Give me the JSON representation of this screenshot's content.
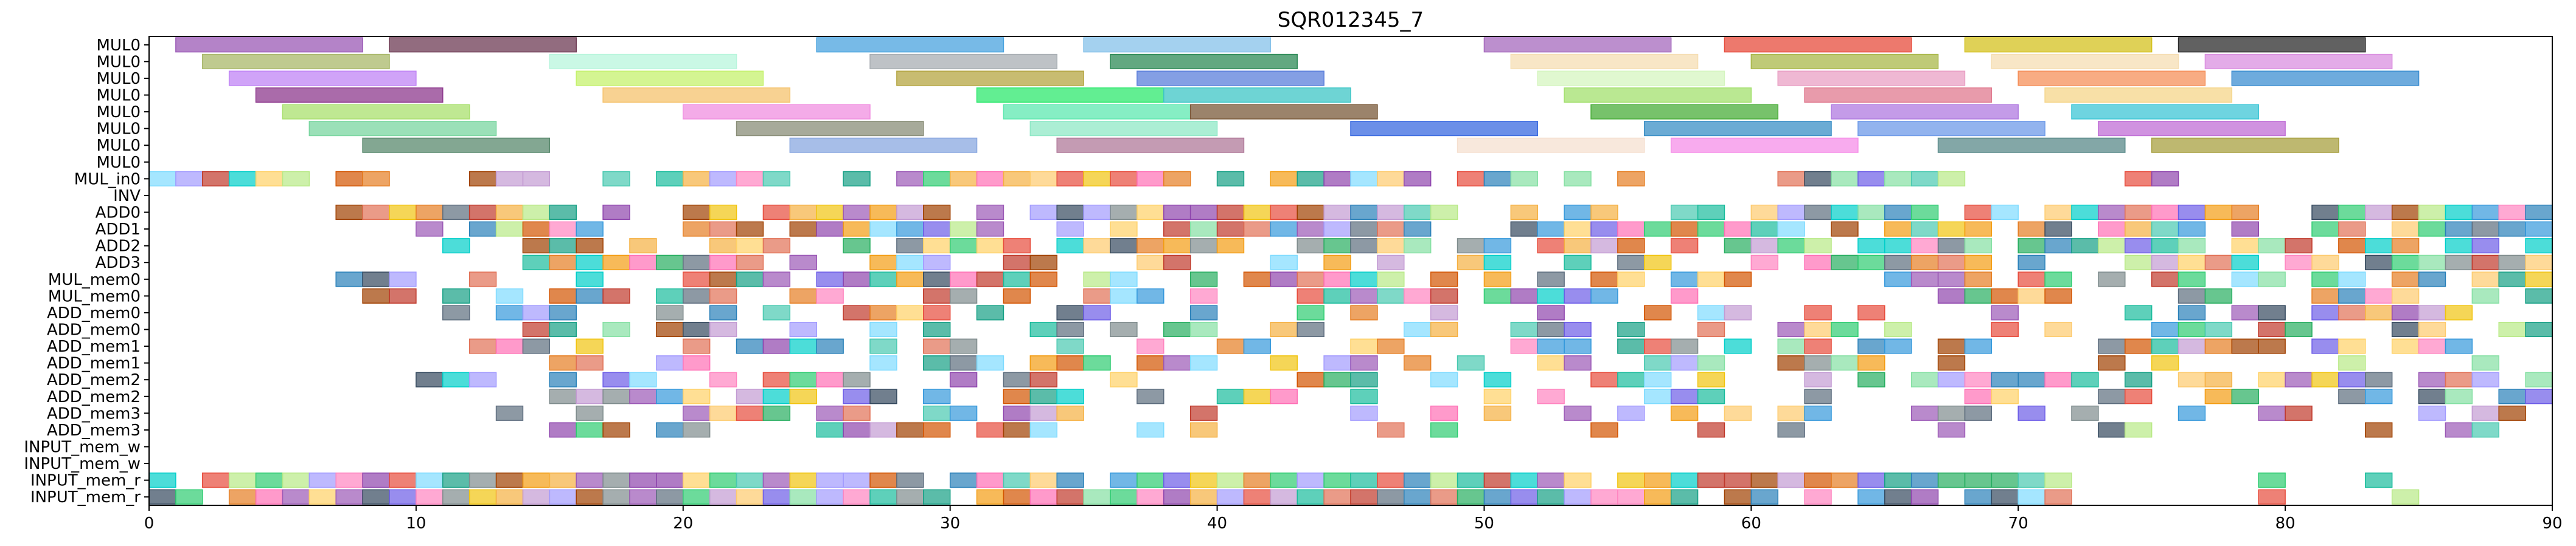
{
  "chart_data": {
    "type": "gantt",
    "title": "SQR012345_7",
    "xlim": [
      0,
      90
    ],
    "xticks": [
      0,
      10,
      20,
      30,
      40,
      50,
      60,
      70,
      80,
      90
    ],
    "xlabel": "",
    "ylabel": "",
    "rows": [
      "MUL0",
      "MUL0",
      "MUL0",
      "MUL0",
      "MUL0",
      "MUL0",
      "MUL0",
      "MUL0",
      "MUL_in0",
      "INV",
      "ADD0",
      "ADD1",
      "ADD2",
      "ADD3",
      "MUL_mem0",
      "MUL_mem0",
      "ADD_mem0",
      "ADD_mem0",
      "ADD_mem1",
      "ADD_mem1",
      "ADD_mem2",
      "ADD_mem2",
      "ADD_mem3",
      "ADD_mem3",
      "INPUT_mem_w",
      "INPUT_mem_w",
      "INPUT_mem_r",
      "INPUT_mem_r"
    ],
    "long_tasks": [
      {
        "row": 0,
        "start": 1,
        "end": 8,
        "color": "#9b59b6"
      },
      {
        "row": 0,
        "start": 9,
        "end": 16,
        "color": "#6e3b54"
      },
      {
        "row": 0,
        "start": 25,
        "end": 32,
        "color": "#4aa3df"
      },
      {
        "row": 0,
        "start": 35,
        "end": 42,
        "color": "#85c1e9"
      },
      {
        "row": 0,
        "start": 50,
        "end": 57,
        "color": "#a569bd"
      },
      {
        "row": 0,
        "start": 59,
        "end": 66,
        "color": "#e74c3c"
      },
      {
        "row": 0,
        "start": 68,
        "end": 75,
        "color": "#d4c11f"
      },
      {
        "row": 0,
        "start": 76,
        "end": 83,
        "color": "#2c2c2c"
      },
      {
        "row": 1,
        "start": 2,
        "end": 9,
        "color": "#a9b86a"
      },
      {
        "row": 1,
        "start": 15,
        "end": 22,
        "color": "#b8f5dc"
      },
      {
        "row": 1,
        "start": 27,
        "end": 34,
        "color": "#a8aeb3"
      },
      {
        "row": 1,
        "start": 36,
        "end": 43,
        "color": "#2e8b57"
      },
      {
        "row": 1,
        "start": 51,
        "end": 58,
        "color": "#f5deb3"
      },
      {
        "row": 1,
        "start": 60,
        "end": 67,
        "color": "#a9b84a"
      },
      {
        "row": 1,
        "start": 69,
        "end": 76,
        "color": "#f5deb3"
      },
      {
        "row": 1,
        "start": 77,
        "end": 84,
        "color": "#da8fe0"
      },
      {
        "row": 2,
        "start": 3,
        "end": 10,
        "color": "#c084f5"
      },
      {
        "row": 2,
        "start": 16,
        "end": 23,
        "color": "#c5f26e"
      },
      {
        "row": 2,
        "start": 28,
        "end": 35,
        "color": "#b5a642"
      },
      {
        "row": 2,
        "start": 37,
        "end": 44,
        "color": "#5b7fdb"
      },
      {
        "row": 2,
        "start": 52,
        "end": 59,
        "color": "#d5f5c0"
      },
      {
        "row": 2,
        "start": 61,
        "end": 68,
        "color": "#e9a0c4"
      },
      {
        "row": 2,
        "start": 70,
        "end": 77,
        "color": "#f5905a"
      },
      {
        "row": 2,
        "start": 78,
        "end": 85,
        "color": "#3d8fd1"
      },
      {
        "row": 3,
        "start": 4,
        "end": 11,
        "color": "#8e3a8e"
      },
      {
        "row": 3,
        "start": 17,
        "end": 24,
        "color": "#f5c36e"
      },
      {
        "row": 3,
        "start": 31,
        "end": 38,
        "color": "#2ee86e"
      },
      {
        "row": 3,
        "start": 38,
        "end": 45,
        "color": "#3ec6c6"
      },
      {
        "row": 3,
        "start": 53,
        "end": 60,
        "color": "#a3e06e"
      },
      {
        "row": 3,
        "start": 62,
        "end": 69,
        "color": "#e07a8f"
      },
      {
        "row": 3,
        "start": 71,
        "end": 78,
        "color": "#f5d58a"
      },
      {
        "row": 4,
        "start": 5,
        "end": 12,
        "color": "#a9e06e"
      },
      {
        "row": 4,
        "start": 20,
        "end": 27,
        "color": "#f08fe0"
      },
      {
        "row": 4,
        "start": 32,
        "end": 39,
        "color": "#5ee8b0"
      },
      {
        "row": 4,
        "start": 39,
        "end": 46,
        "color": "#7a5a3a"
      },
      {
        "row": 4,
        "start": 54,
        "end": 61,
        "color": "#4aad3a"
      },
      {
        "row": 4,
        "start": 63,
        "end": 70,
        "color": "#b07ae0"
      },
      {
        "row": 4,
        "start": 72,
        "end": 79,
        "color": "#3ec6d6"
      },
      {
        "row": 5,
        "start": 6,
        "end": 13,
        "color": "#7ad6a0"
      },
      {
        "row": 5,
        "start": 22,
        "end": 29,
        "color": "#8a8e78"
      },
      {
        "row": 5,
        "start": 33,
        "end": 40,
        "color": "#8fe8c6"
      },
      {
        "row": 5,
        "start": 45,
        "end": 52,
        "color": "#3a6ae0"
      },
      {
        "row": 5,
        "start": 56,
        "end": 63,
        "color": "#3a8fc6"
      },
      {
        "row": 5,
        "start": 64,
        "end": 71,
        "color": "#6e9ae8"
      },
      {
        "row": 5,
        "start": 73,
        "end": 80,
        "color": "#c06ed6"
      },
      {
        "row": 6,
        "start": 8,
        "end": 15,
        "color": "#5a8a6e"
      },
      {
        "row": 6,
        "start": 24,
        "end": 31,
        "color": "#8aa8e0"
      },
      {
        "row": 6,
        "start": 34,
        "end": 41,
        "color": "#b07a9a"
      },
      {
        "row": 6,
        "start": 49,
        "end": 56,
        "color": "#f5e0d0"
      },
      {
        "row": 6,
        "start": 57,
        "end": 64,
        "color": "#f58fe8"
      },
      {
        "row": 6,
        "start": 67,
        "end": 74,
        "color": "#5a8a8a"
      },
      {
        "row": 6,
        "start": 75,
        "end": 82,
        "color": "#a8a040"
      }
    ]
  }
}
